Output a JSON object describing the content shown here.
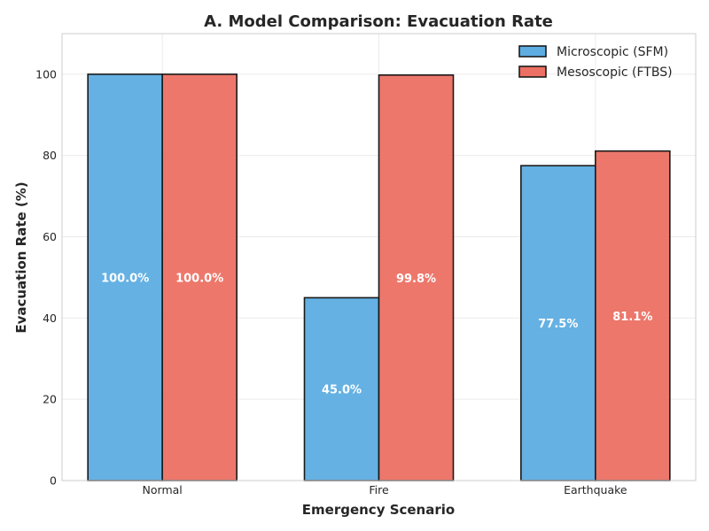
{
  "chart_data": {
    "type": "bar",
    "title": "A. Model Comparison: Evacuation Rate",
    "xlabel": "Emergency Scenario",
    "ylabel": "Evacuation Rate (%)",
    "categories": [
      "Normal",
      "Fire",
      "Earthquake"
    ],
    "series": [
      {
        "name": "Microscopic (SFM)",
        "values": [
          100.0,
          45.0,
          77.5
        ],
        "labels": [
          "100.0%",
          "45.0%",
          "77.5%"
        ],
        "color": "#5DADE2"
      },
      {
        "name": "Mesoscopic (FTBS)",
        "values": [
          100.0,
          99.8,
          81.1
        ],
        "labels": [
          "100.0%",
          "99.8%",
          "81.1%"
        ],
        "color": "#EC7063"
      }
    ],
    "ylim": [
      0,
      110
    ],
    "yticks": [
      0,
      20,
      40,
      60,
      80,
      100
    ],
    "grid": true,
    "legend_position": "top-right",
    "bar_edge_color": "#1a1a1a"
  }
}
